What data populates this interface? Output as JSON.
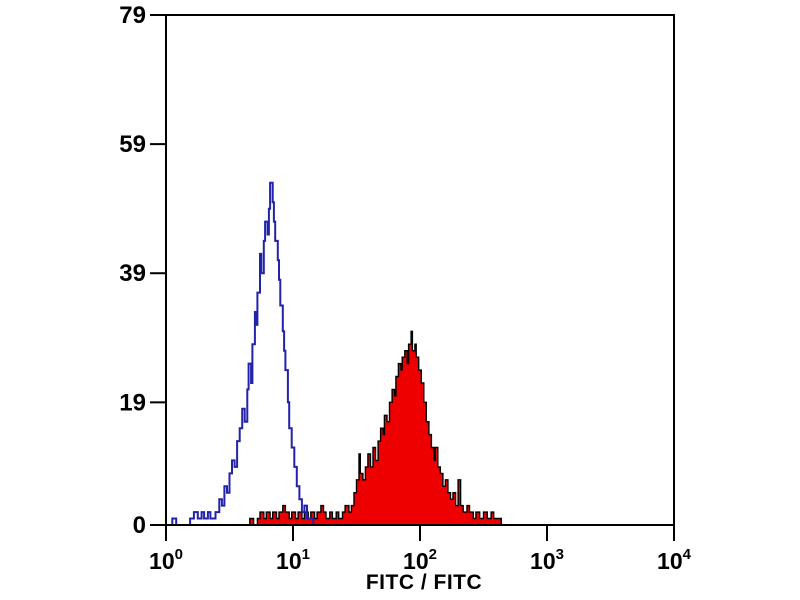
{
  "figure": {
    "background": "#ffffff",
    "axis_color": "#000000"
  },
  "chart_data": {
    "type": "area",
    "subtype": "flow-cytometry-overlay-histogram",
    "title": "",
    "xlabel": "FITC / FITC",
    "ylabel": "",
    "x_scale": "log10",
    "xlim": [
      1,
      10000
    ],
    "ylim": [
      0,
      79
    ],
    "grid": false,
    "legend": "none",
    "y_ticks": [
      0,
      19,
      39,
      59,
      79
    ],
    "x_tick_base": "10",
    "x_tick_exponents": [
      0,
      1,
      2,
      3,
      4
    ],
    "series": [
      {
        "name": "filled-red-histogram",
        "stroke": "#000000",
        "fill": "#ee0000",
        "peak_x_log": 1.93,
        "peak_count": 30,
        "points": [
          [
            0.62,
            0
          ],
          [
            0.66,
            1
          ],
          [
            0.69,
            0
          ],
          [
            0.72,
            1
          ],
          [
            0.74,
            2
          ],
          [
            0.77,
            1
          ],
          [
            0.79,
            2
          ],
          [
            0.82,
            1
          ],
          [
            0.84,
            2
          ],
          [
            0.87,
            1
          ],
          [
            0.89,
            2
          ],
          [
            0.92,
            3
          ],
          [
            0.94,
            2
          ],
          [
            0.97,
            1
          ],
          [
            0.99,
            2
          ],
          [
            1.02,
            1
          ],
          [
            1.04,
            2
          ],
          [
            1.07,
            1
          ],
          [
            1.09,
            2
          ],
          [
            1.12,
            1
          ],
          [
            1.14,
            2
          ],
          [
            1.17,
            1
          ],
          [
            1.19,
            2
          ],
          [
            1.22,
            3
          ],
          [
            1.24,
            2
          ],
          [
            1.26,
            1
          ],
          [
            1.29,
            2
          ],
          [
            1.31,
            1
          ],
          [
            1.34,
            2
          ],
          [
            1.36,
            1
          ],
          [
            1.39,
            2
          ],
          [
            1.41,
            3
          ],
          [
            1.44,
            2
          ],
          [
            1.46,
            3
          ],
          [
            1.48,
            5
          ],
          [
            1.5,
            7
          ],
          [
            1.52,
            11
          ],
          [
            1.53,
            8
          ],
          [
            1.55,
            7
          ],
          [
            1.57,
            9
          ],
          [
            1.59,
            11
          ],
          [
            1.61,
            9
          ],
          [
            1.63,
            12
          ],
          [
            1.65,
            10
          ],
          [
            1.67,
            13
          ],
          [
            1.69,
            15
          ],
          [
            1.71,
            14
          ],
          [
            1.72,
            17
          ],
          [
            1.74,
            16
          ],
          [
            1.76,
            19
          ],
          [
            1.78,
            21
          ],
          [
            1.8,
            20
          ],
          [
            1.81,
            23
          ],
          [
            1.83,
            25
          ],
          [
            1.85,
            24
          ],
          [
            1.86,
            26
          ],
          [
            1.88,
            27
          ],
          [
            1.9,
            25
          ],
          [
            1.91,
            28
          ],
          [
            1.93,
            30
          ],
          [
            1.94,
            27
          ],
          [
            1.96,
            28
          ],
          [
            1.97,
            26
          ],
          [
            1.99,
            24
          ],
          [
            2.01,
            22
          ],
          [
            2.03,
            19
          ],
          [
            2.05,
            16
          ],
          [
            2.07,
            14
          ],
          [
            2.09,
            12
          ],
          [
            2.11,
            10
          ],
          [
            2.12,
            12
          ],
          [
            2.14,
            9
          ],
          [
            2.16,
            8
          ],
          [
            2.18,
            6
          ],
          [
            2.2,
            7
          ],
          [
            2.22,
            5
          ],
          [
            2.24,
            4
          ],
          [
            2.26,
            5
          ],
          [
            2.28,
            3
          ],
          [
            2.3,
            7
          ],
          [
            2.32,
            3
          ],
          [
            2.34,
            2
          ],
          [
            2.37,
            3
          ],
          [
            2.39,
            2
          ],
          [
            2.42,
            1
          ],
          [
            2.44,
            2
          ],
          [
            2.47,
            1
          ],
          [
            2.5,
            2
          ],
          [
            2.53,
            1
          ],
          [
            2.56,
            2
          ],
          [
            2.58,
            1
          ],
          [
            2.61,
            1
          ],
          [
            2.64,
            0
          ]
        ]
      },
      {
        "name": "open-blue-histogram",
        "stroke": "#2222aa",
        "fill": "none",
        "peak_x_log": 0.82,
        "peak_count": 53,
        "points": [
          [
            0.02,
            0
          ],
          [
            0.05,
            1
          ],
          [
            0.08,
            0
          ],
          [
            0.19,
            1
          ],
          [
            0.22,
            2
          ],
          [
            0.25,
            1
          ],
          [
            0.28,
            2
          ],
          [
            0.3,
            1
          ],
          [
            0.33,
            2
          ],
          [
            0.35,
            1
          ],
          [
            0.39,
            2
          ],
          [
            0.42,
            4
          ],
          [
            0.44,
            3
          ],
          [
            0.46,
            6
          ],
          [
            0.48,
            5
          ],
          [
            0.5,
            8
          ],
          [
            0.52,
            10
          ],
          [
            0.54,
            9
          ],
          [
            0.56,
            13
          ],
          [
            0.58,
            15
          ],
          [
            0.6,
            18
          ],
          [
            0.62,
            16
          ],
          [
            0.64,
            21
          ],
          [
            0.65,
            25
          ],
          [
            0.67,
            22
          ],
          [
            0.68,
            28
          ],
          [
            0.7,
            33
          ],
          [
            0.71,
            31
          ],
          [
            0.72,
            36
          ],
          [
            0.74,
            42
          ],
          [
            0.75,
            39
          ],
          [
            0.77,
            44
          ],
          [
            0.78,
            47
          ],
          [
            0.8,
            45
          ],
          [
            0.81,
            49
          ],
          [
            0.82,
            53
          ],
          [
            0.84,
            50
          ],
          [
            0.85,
            47
          ],
          [
            0.86,
            44
          ],
          [
            0.88,
            41
          ],
          [
            0.89,
            38
          ],
          [
            0.9,
            34
          ],
          [
            0.92,
            30
          ],
          [
            0.93,
            27
          ],
          [
            0.94,
            24
          ],
          [
            0.96,
            19
          ],
          [
            0.97,
            15
          ],
          [
            0.99,
            12
          ],
          [
            1.01,
            9
          ],
          [
            1.03,
            6
          ],
          [
            1.05,
            4
          ],
          [
            1.07,
            2
          ],
          [
            1.09,
            3
          ],
          [
            1.11,
            1
          ],
          [
            1.14,
            1
          ],
          [
            1.16,
            0
          ]
        ]
      }
    ]
  }
}
